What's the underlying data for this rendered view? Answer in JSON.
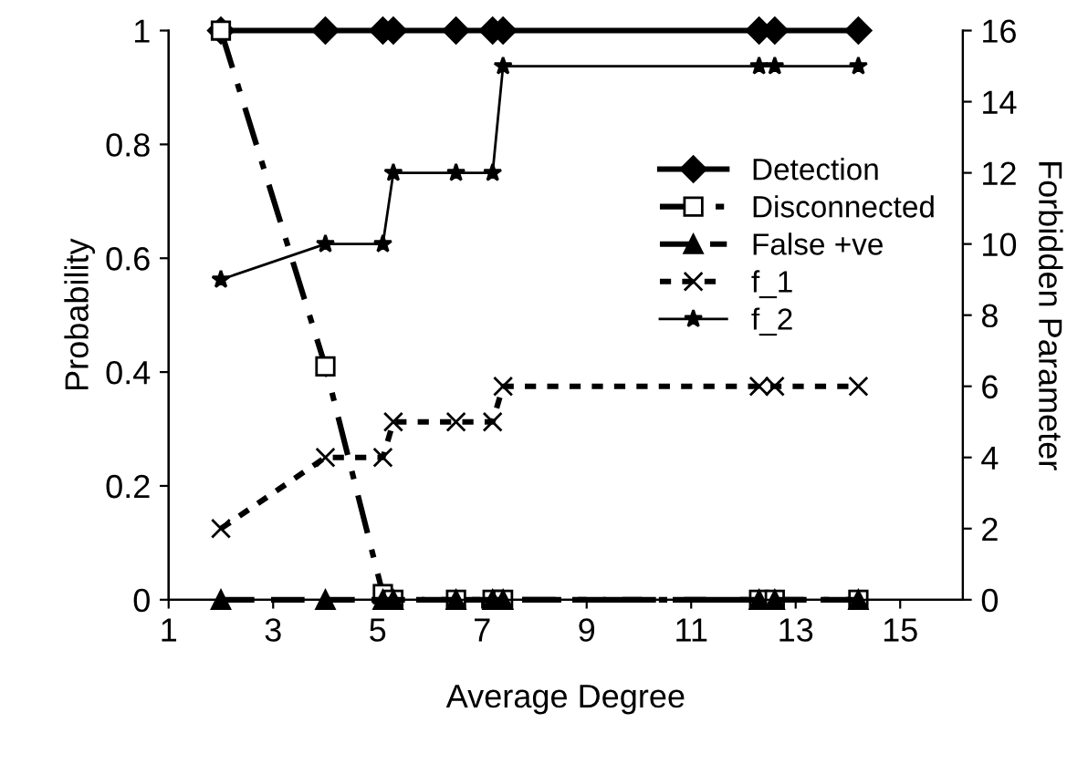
{
  "chart_data": {
    "type": "line",
    "xlabel": "Average Degree",
    "ylabel": "Probability",
    "y2label": "Forbidden Parameter",
    "x": [
      2,
      4,
      5.1,
      5.3,
      6.5,
      7.2,
      7.4,
      12.3,
      12.6,
      14.2
    ],
    "xlim": [
      1,
      16.2
    ],
    "xticks": [
      1,
      3,
      5,
      7,
      9,
      11,
      13,
      15
    ],
    "ylim": [
      0,
      1
    ],
    "yticks": [
      0,
      0.2,
      0.4,
      0.6,
      0.8,
      1
    ],
    "y2lim": [
      0,
      16
    ],
    "y2ticks": [
      0,
      2,
      4,
      6,
      8,
      10,
      12,
      14,
      16
    ],
    "grid": false,
    "legend": "right",
    "series": [
      {
        "name": "Detection",
        "color": "#000000",
        "marker": "diamond",
        "line_style": "solid",
        "values": [
          1,
          1,
          1,
          1,
          1,
          1,
          1,
          1,
          1,
          1
        ]
      },
      {
        "name": "Disconnected",
        "color": "#000000",
        "marker": "square",
        "line_style": "dashdot",
        "values": [
          1,
          0.41,
          0.01,
          0,
          0,
          0,
          0,
          0,
          0,
          0
        ]
      },
      {
        "name": "False +ve",
        "color": "#000000",
        "marker": "triangle",
        "line_style": "dashed",
        "values": [
          0,
          0,
          0,
          0,
          0,
          0,
          0,
          0,
          0,
          0
        ]
      },
      {
        "name": "f_1",
        "color": "#000000",
        "marker": "cross",
        "line_style": "dotted",
        "axis": "y2",
        "values": [
          2,
          4,
          4,
          5,
          5,
          5,
          6,
          6,
          6,
          6
        ]
      },
      {
        "name": "f_2",
        "color": "#000000",
        "marker": "star",
        "line_style": "solid",
        "axis": "y2",
        "values": [
          9,
          10,
          10,
          12,
          12,
          12,
          15,
          15,
          15,
          15
        ]
      }
    ]
  }
}
